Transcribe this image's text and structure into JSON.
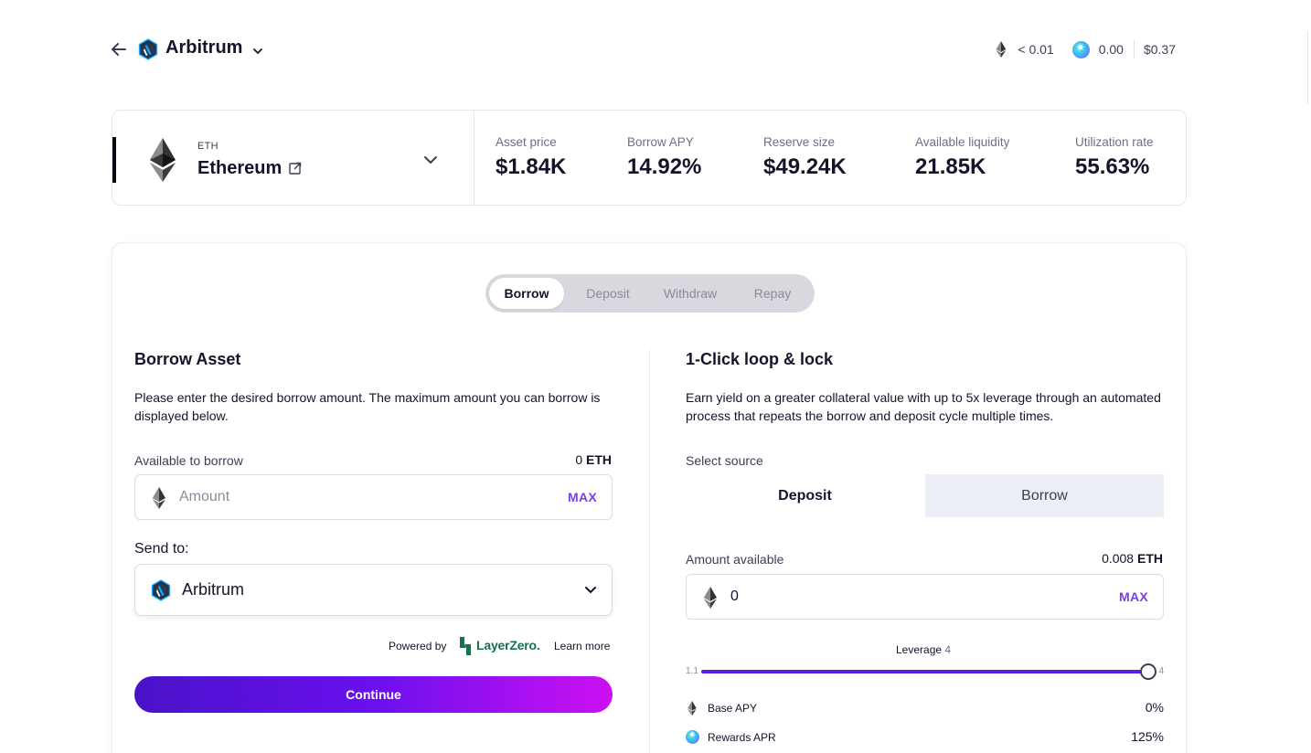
{
  "header": {
    "network_name": "Arbitrum",
    "balances": {
      "eth_value": "< 0.01",
      "rewards_value": "0.00",
      "usd_value": "$0.37"
    }
  },
  "asset": {
    "symbol": "ETH",
    "name": "Ethereum",
    "stats": [
      {
        "label": "Asset price",
        "value": "$1.84K"
      },
      {
        "label": "Borrow APY",
        "value": "14.92%"
      },
      {
        "label": "Reserve size",
        "value": "$49.24K"
      },
      {
        "label": "Available liquidity",
        "value": "21.85K"
      },
      {
        "label": "Utilization rate",
        "value": "55.63%"
      }
    ]
  },
  "tabs": [
    "Borrow",
    "Deposit",
    "Withdraw",
    "Repay"
  ],
  "active_tab": "Borrow",
  "borrow": {
    "title": "Borrow Asset",
    "description": "Please enter the desired borrow amount. The maximum amount you can borrow is displayed below.",
    "available_label": "Available to borrow",
    "available_amount": "0",
    "available_unit": "ETH",
    "amount_placeholder": "Amount",
    "max_label": "MAX",
    "send_to_label": "Send to:",
    "send_to_value": "Arbitrum",
    "powered_by": "Powered by",
    "partner_name": "LayerZero.",
    "learn_more": "Learn more",
    "continue_label": "Continue"
  },
  "loop": {
    "title": "1-Click loop & lock",
    "description": "Earn yield on a greater collateral value with up to 5x leverage through an automated process that repeats the borrow and deposit cycle multiple times.",
    "select_source_label": "Select source",
    "source_options": [
      "Deposit",
      "Borrow"
    ],
    "selected_source": "Deposit",
    "amount_available_label": "Amount available",
    "amount_available_value": "0.008",
    "amount_available_unit": "ETH",
    "amount_value": "0",
    "max_label": "MAX",
    "leverage_label": "Leverage",
    "leverage_value": "4",
    "leverage_min": "1.1",
    "leverage_max": "4",
    "base_apy_label": "Base APY",
    "base_apy_value": "0%",
    "rewards_apr_label": "Rewards APR",
    "rewards_apr_value": "125%"
  },
  "colors": {
    "accent_purple": "#7b3fe4",
    "slider_fill": "#5b1de0",
    "layerzero_green": "#1a6e4a"
  }
}
